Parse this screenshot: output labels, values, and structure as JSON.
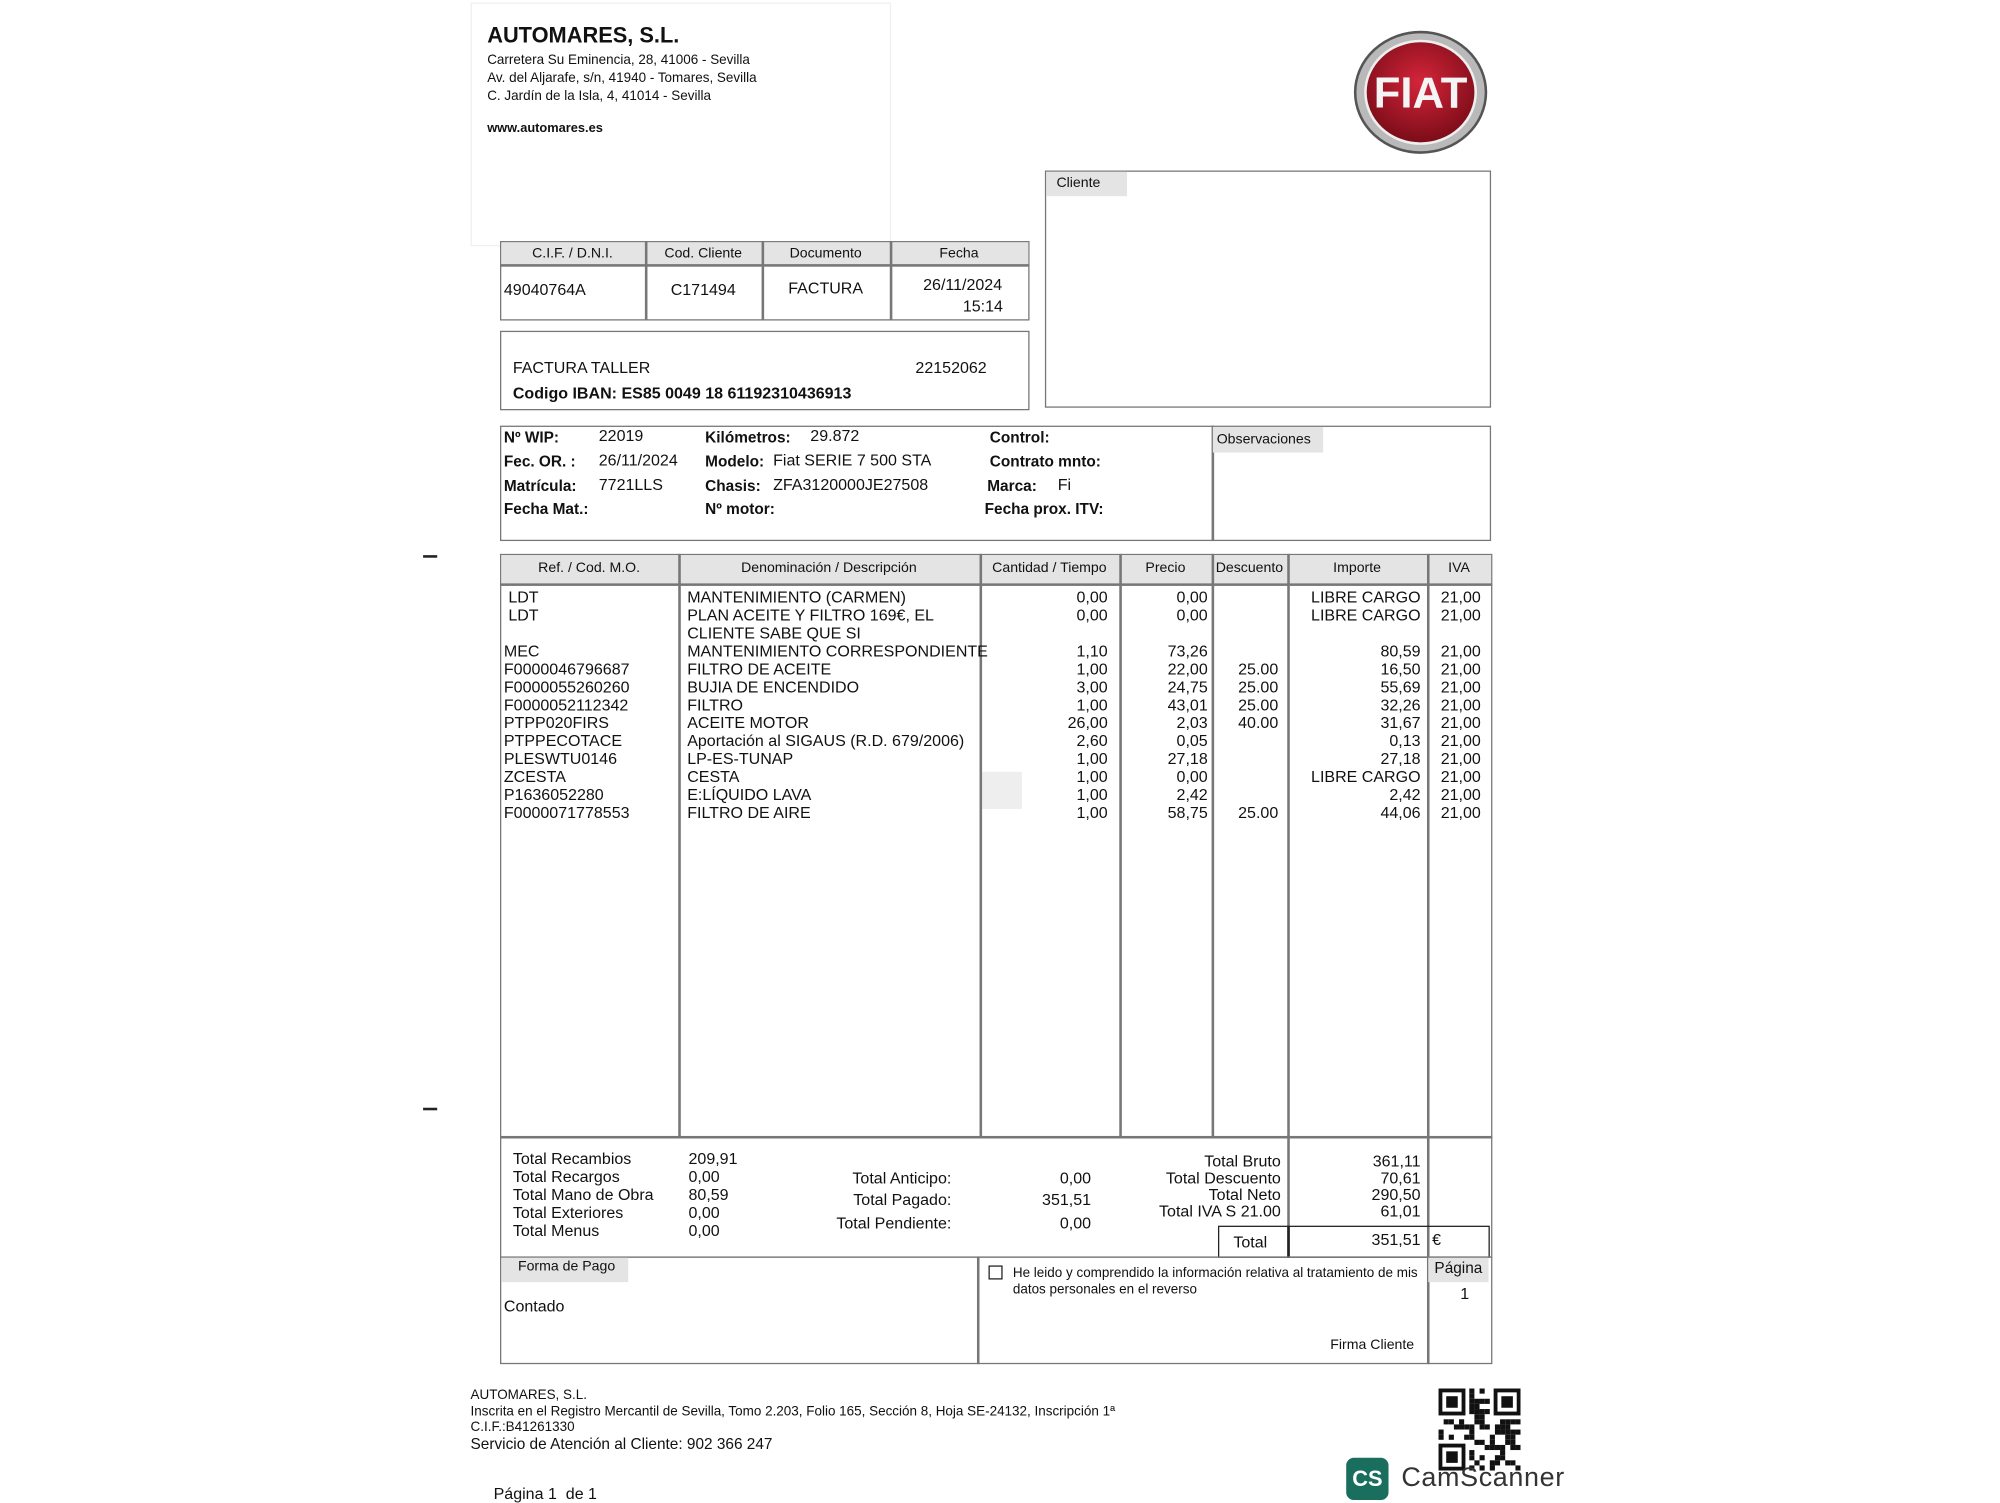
{
  "header": {
    "company": "AUTOMARES, S.L.",
    "address": [
      "Carretera Su Eminencia, 28, 41006 - Sevilla",
      "Av. del Aljarafe, s/n, 41940 - Tomares, Sevilla",
      "C. Jardín de la Isla, 4, 41014 - Sevilla"
    ],
    "web": "www.automares.es",
    "brand": "FIAT"
  },
  "doc_info": {
    "headers": [
      "C.I.F. / D.N.I.",
      "Cod. Cliente",
      "Documento",
      "Fecha"
    ],
    "cif": "49040764A",
    "client_code": "C171494",
    "document": "FACTURA",
    "date": "26/11/2024",
    "time": "15:14"
  },
  "invoice": {
    "type": "FACTURA TALLER",
    "number": "22152062",
    "iban": "Codigo IBAN: ES85 0049 18 61192310436913"
  },
  "client": {
    "label": "Cliente"
  },
  "vehicle": {
    "fields": [
      {
        "label": "Nº WIP:",
        "value": "22019"
      },
      {
        "label": "Kilómetros:",
        "value": "29.872"
      },
      {
        "label": "Control:"
      },
      {
        "label": "Fec. OR. :",
        "value": "26/11/2024"
      },
      {
        "label": "Modelo:",
        "value": "Fiat SERIE 7 500 STA"
      },
      {
        "label": "Contrato mnto:"
      },
      {
        "label": "Matrícula:",
        "value": "7721LLS"
      },
      {
        "label": "Chasis:",
        "value": "ZFA3120000JE27508"
      },
      {
        "label": "Marca:",
        "value": "Fi"
      },
      {
        "label": "Fecha Mat.:"
      },
      {
        "label": "Nº motor:"
      },
      {
        "label": "Fecha prox. ITV:"
      }
    ],
    "observations_label": "Observaciones"
  },
  "items": {
    "headers": [
      "Ref. / Cod. M.O.",
      "Denominación / Descripción",
      "Cantidad / Tiempo",
      "Precio",
      "Descuento",
      "Importe",
      "IVA"
    ],
    "rows": [
      {
        "ref": " LDT",
        "desc": "MANTENIMIENTO (CARMEN)",
        "qty": "0,00",
        "price": "0,00",
        "amount": "LIBRE CARGO",
        "vat": "21,00"
      },
      {
        "ref": " LDT",
        "desc": "PLAN ACEITE Y FILTRO 169€, EL\nCLIENTE SABE QUE SI",
        "qty": "0,00",
        "price": "0,00",
        "amount": "LIBRE CARGO",
        "vat": "21,00"
      },
      {
        "ref": "MEC",
        "desc": "MANTENIMIENTO CORRESPONDIENTE",
        "qty": "1,10",
        "price": "73,26",
        "amount": "80,59",
        "vat": "21,00"
      },
      {
        "ref": "F0000046796687",
        "desc": "FILTRO DE ACEITE",
        "qty": "1,00",
        "price": "22,00",
        "discount": "25.00",
        "amount": "16,50",
        "vat": "21,00"
      },
      {
        "ref": "F0000055260260",
        "desc": "BUJIA DE ENCENDIDO",
        "qty": "3,00",
        "price": "24,75",
        "discount": "25.00",
        "amount": "55,69",
        "vat": "21,00"
      },
      {
        "ref": "F0000052112342",
        "desc": "FILTRO",
        "qty": "1,00",
        "price": "43,01",
        "discount": "25.00",
        "amount": "32,26",
        "vat": "21,00"
      },
      {
        "ref": "PTPP020FIRS",
        "desc": "ACEITE MOTOR",
        "qty": "26,00",
        "price": "2,03",
        "discount": "40.00",
        "amount": "31,67",
        "vat": "21,00"
      },
      {
        "ref": "PTPPECOTACE",
        "desc": "Aportación al SIGAUS (R.D. 679/2006)",
        "qty": "2,60",
        "price": "0,05",
        "amount": "0,13",
        "vat": "21,00"
      },
      {
        "ref": "PLESWTU0146",
        "desc": "LP-ES-TUNAP",
        "qty": "1,00",
        "price": "27,18",
        "amount": "27,18",
        "vat": "21,00"
      },
      {
        "ref": "ZCESTA",
        "desc": "CESTA",
        "qty": "1,00",
        "price": "0,00",
        "amount": "LIBRE CARGO",
        "vat": "21,00"
      },
      {
        "ref": "P1636052280",
        "desc": "E:LÍQUIDO LAVA",
        "qty": "1,00",
        "price": "2,42",
        "amount": "2,42",
        "vat": "21,00"
      },
      {
        "ref": "F0000071778553",
        "desc": "FILTRO DE AIRE",
        "qty": "1,00",
        "price": "58,75",
        "discount": "25.00",
        "amount": "44,06",
        "vat": "21,00"
      }
    ]
  },
  "totals": {
    "left": [
      {
        "label": "Total Recambios",
        "value": "209,91"
      },
      {
        "label": "Total Recargos",
        "value": "0,00"
      },
      {
        "label": "Total Mano de Obra",
        "value": "80,59"
      },
      {
        "label": "Total Exteriores",
        "value": "0,00"
      },
      {
        "label": "Total Menus",
        "value": "0,00"
      }
    ],
    "middle": [
      {
        "label": "Total Anticipo:",
        "value": "0,00"
      },
      {
        "label": "Total Pagado:",
        "value": "351,51"
      },
      {
        "label": "Total Pendiente:",
        "value": "0,00"
      }
    ],
    "right": [
      {
        "label": "Total Bruto",
        "value": "361,11"
      },
      {
        "label": "Total Descuento",
        "value": "70,61"
      },
      {
        "label": "Total Neto",
        "value": "290,50"
      },
      {
        "label": "Total IVA S 21.00",
        "value": "61,01"
      }
    ],
    "total_label": "Total",
    "total_value": "351,51",
    "currency": "€"
  },
  "payment": {
    "label": "Forma de Pago",
    "method": "Contado"
  },
  "consent": {
    "text": "He leido y comprendido la información relativa al tratamiento de mis datos personales en el reverso",
    "signature": "Firma Cliente"
  },
  "page": {
    "label": "Página",
    "number": "1"
  },
  "footer": {
    "lines": [
      "AUTOMARES, S.L.",
      "Inscrita en el Registro Mercantil de Sevilla, Tomo 2.203, Folio 165, Sección 8, Hoja SE-24132, Inscripción 1ª",
      "C.I.F.:B41261330",
      "Servicio de Atención al Cliente: 902 366 247"
    ],
    "pagination": "Página 1  de 1"
  },
  "watermark": {
    "badge": "CS",
    "name": "CamScanner"
  }
}
